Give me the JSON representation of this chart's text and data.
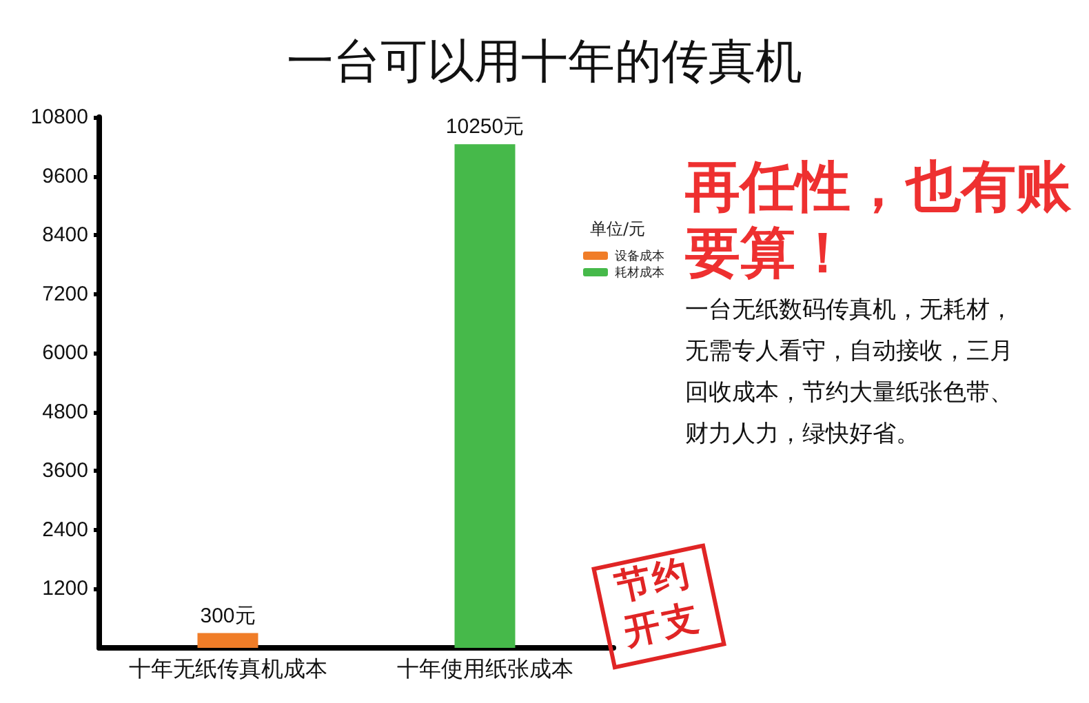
{
  "chart_data": {
    "type": "bar",
    "title": "一台可以用十年的传真机",
    "categories": [
      "十年无纸传真机成本",
      "十年使用纸张成本"
    ],
    "stacked": true,
    "series": [
      {
        "name": "设备成本",
        "color": "#f07d28",
        "values": [
          300,
          null
        ],
        "value_labels": [
          "300元",
          null
        ]
      },
      {
        "name": "耗材成本",
        "color": "#46b94a",
        "values": [
          null,
          10250
        ],
        "value_labels": [
          null,
          "10250元"
        ]
      }
    ],
    "ylim": [
      0,
      10800
    ],
    "yticks": [
      1200,
      2400,
      3600,
      4800,
      6000,
      7200,
      8400,
      9600,
      10800
    ],
    "grid": false,
    "legend": "right",
    "legend_title": "单位/元",
    "annotations": [
      "再任性，也有账要算！",
      "一台无纸数码传真机，无耗材，无需专人看守，自动接收，三月回收成本，节约大量纸张色带、财力人力，绿快好省。",
      "节约开支"
    ]
  }
}
